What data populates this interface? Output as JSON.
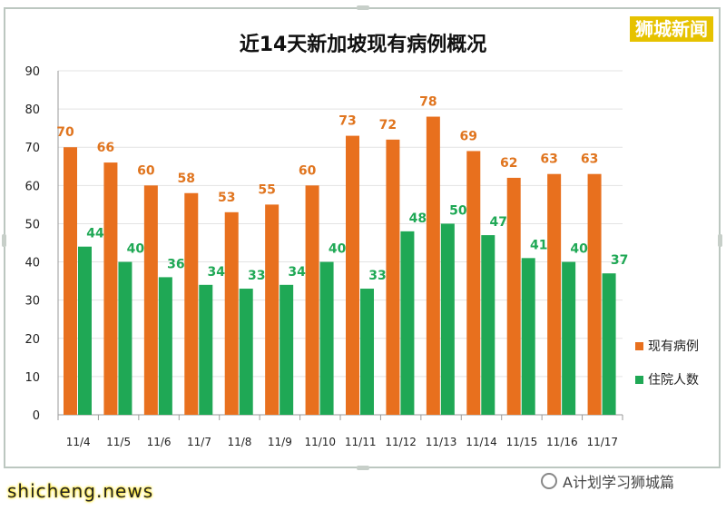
{
  "brand": "狮城新闻",
  "watermark": "shicheng.news",
  "source_text": "A计划学习狮城篇",
  "chart_data": {
    "type": "bar",
    "title": "近14天新加坡现有病例概况",
    "categories": [
      "11/4",
      "11/5",
      "11/6",
      "11/7",
      "11/8",
      "11/9",
      "11/10",
      "11/11",
      "11/12",
      "11/13",
      "11/14",
      "11/15",
      "11/16",
      "11/17"
    ],
    "series": [
      {
        "name": "现有病例",
        "color": "#e8701e",
        "label_color": "#e0751f",
        "values": [
          70,
          66,
          60,
          58,
          53,
          55,
          60,
          73,
          72,
          78,
          69,
          62,
          63,
          63
        ]
      },
      {
        "name": "住院人数",
        "color": "#1fa855",
        "label_color": "#1fa855",
        "values": [
          44,
          40,
          36,
          34,
          33,
          34,
          40,
          33,
          48,
          50,
          47,
          41,
          40,
          37
        ]
      }
    ],
    "ylim": [
      0,
      90
    ],
    "yticks": [
      0,
      10,
      20,
      30,
      40,
      50,
      60,
      70,
      80,
      90
    ],
    "grid": true,
    "legend": "right"
  }
}
